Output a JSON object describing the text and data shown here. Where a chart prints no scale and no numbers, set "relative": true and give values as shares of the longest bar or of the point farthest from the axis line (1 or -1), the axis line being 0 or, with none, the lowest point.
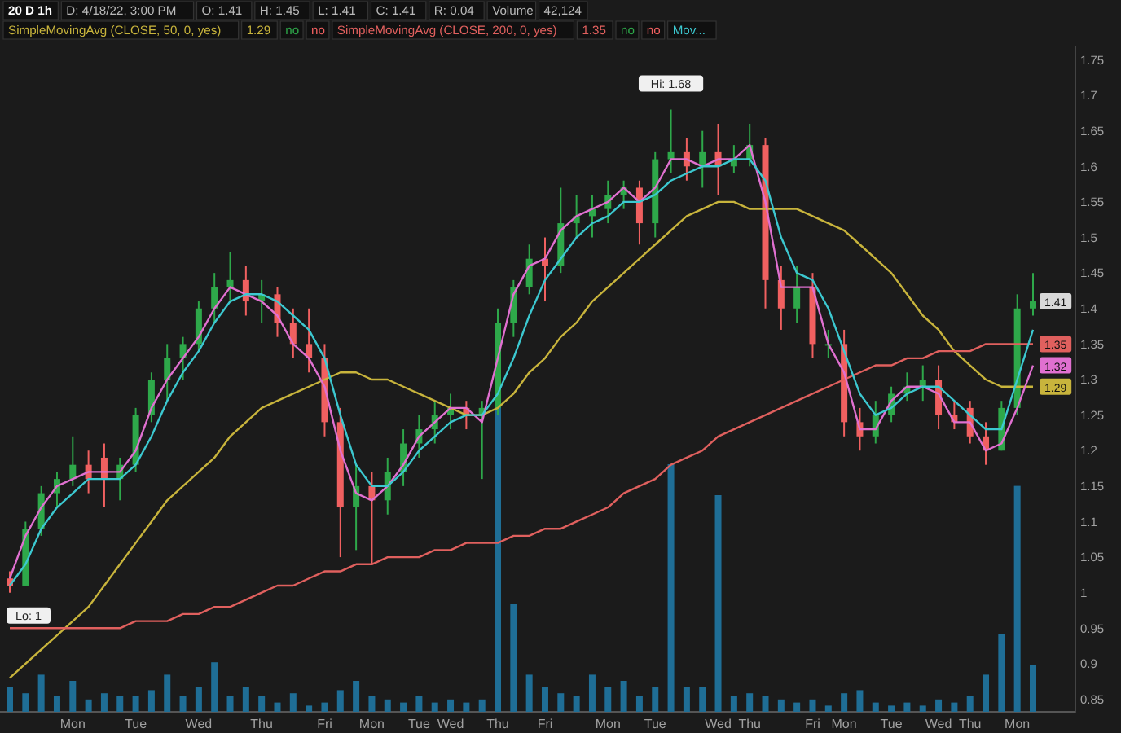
{
  "chart_data": [
    {
      "type": "candlestick",
      "title": "20 D 1h",
      "annotations": [
        "1.41",
        "D: 4/18/22, 3:00 PM",
        "O: 1.41",
        "H: 1.45",
        "L: 1.41",
        "C: 1.41",
        "R: 0.04",
        "Volume",
        "42,124",
        "1.29",
        "no",
        "no",
        "1.35",
        "no",
        "no",
        {
          "text": "Hi: 1.68",
          "y": 1.68
        },
        {
          "text": "Lo: 1",
          "y": 1.0
        }
      ],
      "categories": [
        null,
        null,
        null,
        null,
        "Mon",
        null,
        null,
        null,
        "Tue",
        null,
        null,
        null,
        "Wed",
        null,
        null,
        null,
        "Thu",
        null,
        null,
        null,
        "Fri",
        null,
        null,
        "Mon",
        null,
        null,
        "Tue",
        null,
        "Wed",
        null,
        null,
        "Thu",
        null,
        null,
        "Fri",
        null,
        null,
        null,
        "Mon",
        null,
        null,
        "Tue",
        null,
        null,
        null,
        "Wed",
        null,
        "Thu",
        null,
        null,
        null,
        "Fri",
        null,
        "Mon",
        null,
        null,
        "Tue",
        null,
        null,
        "Wed",
        null,
        "Thu",
        null,
        null,
        "Mon",
        null
      ],
      "ohlc": [
        [
          1.02,
          1.03,
          1.0,
          1.01
        ],
        [
          1.01,
          1.1,
          1.01,
          1.09
        ],
        [
          1.09,
          1.15,
          1.08,
          1.14
        ],
        [
          1.14,
          1.17,
          1.12,
          1.16
        ],
        [
          1.16,
          1.22,
          1.15,
          1.18
        ],
        [
          1.18,
          1.2,
          1.14,
          1.16
        ],
        [
          1.19,
          1.21,
          1.12,
          1.16
        ],
        [
          1.16,
          1.19,
          1.13,
          1.18
        ],
        [
          1.18,
          1.26,
          1.17,
          1.25
        ],
        [
          1.25,
          1.31,
          1.24,
          1.3
        ],
        [
          1.3,
          1.35,
          1.27,
          1.33
        ],
        [
          1.33,
          1.36,
          1.3,
          1.35
        ],
        [
          1.35,
          1.41,
          1.34,
          1.4
        ],
        [
          1.4,
          1.45,
          1.38,
          1.43
        ],
        [
          1.43,
          1.48,
          1.41,
          1.44
        ],
        [
          1.44,
          1.46,
          1.39,
          1.41
        ],
        [
          1.41,
          1.44,
          1.38,
          1.42
        ],
        [
          1.42,
          1.43,
          1.36,
          1.38
        ],
        [
          1.38,
          1.4,
          1.33,
          1.35
        ],
        [
          1.35,
          1.4,
          1.31,
          1.33
        ],
        [
          1.33,
          1.35,
          1.22,
          1.24
        ],
        [
          1.24,
          1.26,
          1.05,
          1.12
        ],
        [
          1.12,
          1.18,
          1.06,
          1.15
        ],
        [
          1.15,
          1.17,
          1.04,
          1.13
        ],
        [
          1.13,
          1.19,
          1.11,
          1.17
        ],
        [
          1.17,
          1.23,
          1.15,
          1.21
        ],
        [
          1.21,
          1.25,
          1.19,
          1.23
        ],
        [
          1.23,
          1.27,
          1.21,
          1.25
        ],
        [
          1.25,
          1.28,
          1.23,
          1.26
        ],
        [
          1.26,
          1.27,
          1.23,
          1.25
        ],
        [
          1.25,
          1.27,
          1.16,
          1.26
        ],
        [
          1.26,
          1.4,
          1.25,
          1.38
        ],
        [
          1.38,
          1.44,
          1.36,
          1.43
        ],
        [
          1.43,
          1.49,
          1.42,
          1.47
        ],
        [
          1.47,
          1.5,
          1.41,
          1.46
        ],
        [
          1.46,
          1.57,
          1.45,
          1.52
        ],
        [
          1.52,
          1.56,
          1.5,
          1.53
        ],
        [
          1.53,
          1.56,
          1.5,
          1.54
        ],
        [
          1.54,
          1.58,
          1.52,
          1.56
        ],
        [
          1.56,
          1.58,
          1.54,
          1.57
        ],
        [
          1.57,
          1.58,
          1.49,
          1.52
        ],
        [
          1.52,
          1.62,
          1.5,
          1.61
        ],
        [
          1.61,
          1.68,
          1.59,
          1.62
        ],
        [
          1.62,
          1.64,
          1.58,
          1.6
        ],
        [
          1.6,
          1.65,
          1.57,
          1.62
        ],
        [
          1.62,
          1.66,
          1.56,
          1.6
        ],
        [
          1.6,
          1.63,
          1.59,
          1.61
        ],
        [
          1.61,
          1.66,
          1.6,
          1.63
        ],
        [
          1.63,
          1.64,
          1.4,
          1.44
        ],
        [
          1.44,
          1.46,
          1.37,
          1.4
        ],
        [
          1.4,
          1.46,
          1.38,
          1.43
        ],
        [
          1.43,
          1.45,
          1.33,
          1.35
        ],
        [
          1.35,
          1.37,
          1.33,
          1.35
        ],
        [
          1.35,
          1.37,
          1.22,
          1.24
        ],
        [
          1.24,
          1.26,
          1.2,
          1.22
        ],
        [
          1.22,
          1.27,
          1.21,
          1.25
        ],
        [
          1.25,
          1.29,
          1.24,
          1.28
        ],
        [
          1.28,
          1.31,
          1.27,
          1.29
        ],
        [
          1.29,
          1.32,
          1.27,
          1.3
        ],
        [
          1.3,
          1.32,
          1.23,
          1.25
        ],
        [
          1.25,
          1.27,
          1.23,
          1.24
        ],
        [
          1.26,
          1.27,
          1.21,
          1.22
        ],
        [
          1.22,
          1.24,
          1.18,
          1.2
        ],
        [
          1.2,
          1.27,
          1.2,
          1.26
        ],
        [
          1.26,
          1.42,
          1.25,
          1.4
        ],
        [
          1.4,
          1.45,
          1.39,
          1.41
        ]
      ],
      "series": [
        {
          "type": "line",
          "name": "SimpleMovingAvg (CLOSE, 50, 0, yes)",
          "color": "#c8b43c",
          "value_labels": [
            null,
            null,
            null,
            null,
            null,
            null,
            null,
            null,
            null,
            null,
            null,
            null,
            null,
            null,
            null,
            null,
            null,
            null,
            null,
            null,
            null,
            null,
            null,
            null,
            null,
            null,
            null,
            null,
            null,
            null,
            null,
            null,
            null,
            null,
            null,
            null,
            null,
            null,
            null,
            null,
            null,
            null,
            null,
            null,
            null,
            null,
            null,
            null,
            null,
            null,
            null,
            null,
            null,
            null,
            null,
            null,
            null,
            null,
            null,
            null,
            null,
            null,
            null,
            null,
            null,
            "1.29"
          ],
          "values": [
            0.88,
            0.9,
            0.92,
            0.94,
            0.96,
            0.98,
            1.01,
            1.04,
            1.07,
            1.1,
            1.13,
            1.15,
            1.17,
            1.19,
            1.22,
            1.24,
            1.26,
            1.27,
            1.28,
            1.29,
            1.3,
            1.31,
            1.31,
            1.3,
            1.3,
            1.29,
            1.28,
            1.27,
            1.26,
            1.25,
            1.25,
            1.26,
            1.28,
            1.31,
            1.33,
            1.36,
            1.38,
            1.41,
            1.43,
            1.45,
            1.47,
            1.49,
            1.51,
            1.53,
            1.54,
            1.55,
            1.55,
            1.54,
            1.54,
            1.54,
            1.54,
            1.53,
            1.52,
            1.51,
            1.49,
            1.47,
            1.45,
            1.42,
            1.39,
            1.37,
            1.34,
            1.32,
            1.3,
            1.29,
            1.29,
            1.29
          ]
        },
        {
          "type": "line",
          "name": "SimpleMovingAvg (CLOSE, 200, 0, yes)",
          "color": "#e0605e",
          "value_labels": [
            null,
            null,
            null,
            null,
            null,
            null,
            null,
            null,
            null,
            null,
            null,
            null,
            null,
            null,
            null,
            null,
            null,
            null,
            null,
            null,
            null,
            null,
            null,
            null,
            null,
            null,
            null,
            null,
            null,
            null,
            null,
            null,
            null,
            null,
            null,
            null,
            null,
            null,
            null,
            null,
            null,
            null,
            null,
            null,
            null,
            null,
            null,
            null,
            null,
            null,
            null,
            null,
            null,
            null,
            null,
            null,
            null,
            null,
            null,
            null,
            null,
            null,
            null,
            null,
            null,
            "1.35"
          ],
          "values": [
            0.95,
            0.95,
            0.95,
            0.95,
            0.95,
            0.95,
            0.95,
            0.95,
            0.96,
            0.96,
            0.96,
            0.97,
            0.97,
            0.98,
            0.98,
            0.99,
            1.0,
            1.01,
            1.01,
            1.02,
            1.03,
            1.03,
            1.04,
            1.04,
            1.05,
            1.05,
            1.05,
            1.06,
            1.06,
            1.07,
            1.07,
            1.07,
            1.08,
            1.08,
            1.09,
            1.09,
            1.1,
            1.11,
            1.12,
            1.14,
            1.15,
            1.16,
            1.18,
            1.19,
            1.2,
            1.22,
            1.23,
            1.24,
            1.25,
            1.26,
            1.27,
            1.28,
            1.29,
            1.3,
            1.31,
            1.32,
            1.32,
            1.33,
            1.33,
            1.34,
            1.34,
            1.34,
            1.35,
            1.35,
            1.35,
            1.35
          ]
        },
        {
          "type": "line",
          "color": "#e070d0",
          "value_labels": [
            null,
            null,
            null,
            null,
            null,
            null,
            null,
            null,
            null,
            null,
            null,
            null,
            null,
            null,
            null,
            null,
            null,
            null,
            null,
            null,
            null,
            null,
            null,
            null,
            null,
            null,
            null,
            null,
            null,
            null,
            null,
            null,
            null,
            null,
            null,
            null,
            null,
            null,
            null,
            null,
            null,
            null,
            null,
            null,
            null,
            null,
            null,
            null,
            null,
            null,
            null,
            null,
            null,
            null,
            null,
            null,
            null,
            null,
            null,
            null,
            null,
            null,
            null,
            null,
            null,
            "1.32"
          ],
          "values": [
            1.02,
            1.08,
            1.12,
            1.15,
            1.16,
            1.17,
            1.17,
            1.17,
            1.2,
            1.26,
            1.3,
            1.33,
            1.36,
            1.4,
            1.43,
            1.42,
            1.41,
            1.39,
            1.35,
            1.33,
            1.29,
            1.2,
            1.14,
            1.13,
            1.15,
            1.18,
            1.22,
            1.24,
            1.26,
            1.26,
            1.24,
            1.33,
            1.42,
            1.46,
            1.47,
            1.51,
            1.53,
            1.54,
            1.55,
            1.57,
            1.55,
            1.57,
            1.61,
            1.61,
            1.6,
            1.61,
            1.61,
            1.63,
            1.55,
            1.43,
            1.43,
            1.43,
            1.35,
            1.31,
            1.23,
            1.23,
            1.27,
            1.29,
            1.29,
            1.28,
            1.24,
            1.24,
            1.2,
            1.21,
            1.26,
            1.32
          ]
        },
        {
          "type": "line",
          "name": "Mov...",
          "color": "#3cc8d0",
          "values": [
            1.01,
            1.04,
            1.09,
            1.12,
            1.14,
            1.16,
            1.16,
            1.16,
            1.18,
            1.22,
            1.27,
            1.31,
            1.34,
            1.38,
            1.41,
            1.42,
            1.42,
            1.41,
            1.39,
            1.37,
            1.33,
            1.25,
            1.18,
            1.15,
            1.15,
            1.17,
            1.2,
            1.22,
            1.24,
            1.25,
            1.25,
            1.28,
            1.33,
            1.39,
            1.44,
            1.47,
            1.5,
            1.52,
            1.53,
            1.55,
            1.55,
            1.56,
            1.58,
            1.59,
            1.6,
            1.6,
            1.61,
            1.61,
            1.58,
            1.5,
            1.45,
            1.44,
            1.4,
            1.34,
            1.28,
            1.25,
            1.26,
            1.28,
            1.29,
            1.29,
            1.27,
            1.25,
            1.23,
            1.23,
            1.3,
            1.37
          ]
        }
      ],
      "ylim": [
        0.83,
        1.77
      ],
      "yticks": [
        0.85,
        0.9,
        0.95,
        1,
        1.05,
        1.1,
        1.15,
        1.2,
        1.25,
        1.3,
        1.35,
        1.4,
        1.45,
        1.5,
        1.55,
        1.6,
        1.65,
        1.7,
        1.75
      ],
      "legend": "top"
    },
    {
      "type": "bar",
      "relative": true,
      "color": "#1f6e96",
      "categories": [
        null,
        null,
        null,
        null,
        null,
        null,
        null,
        null,
        null,
        null,
        null,
        null,
        null,
        null,
        null,
        null,
        null,
        null,
        null,
        null,
        null,
        null,
        null,
        null,
        null,
        null,
        null,
        null,
        null,
        null,
        null,
        null,
        null,
        null,
        null,
        null,
        null,
        null,
        null,
        null,
        null,
        null,
        null,
        null,
        null,
        null,
        null,
        null,
        null,
        null,
        null,
        null,
        null,
        null,
        null,
        null,
        null,
        null,
        null,
        null,
        null,
        null,
        null,
        null,
        null,
        null
      ],
      "values": [
        0.08,
        0.06,
        0.12,
        0.05,
        0.1,
        0.04,
        0.06,
        0.05,
        0.05,
        0.07,
        0.12,
        0.05,
        0.08,
        0.16,
        0.05,
        0.08,
        0.05,
        0.03,
        0.06,
        0.02,
        0.03,
        0.07,
        0.1,
        0.05,
        0.04,
        0.03,
        0.05,
        0.03,
        0.04,
        0.03,
        0.04,
        1.0,
        0.35,
        0.12,
        0.08,
        0.06,
        0.05,
        0.12,
        0.08,
        0.1,
        0.05,
        0.08,
        0.8,
        0.08,
        0.08,
        0.7,
        0.05,
        0.06,
        0.05,
        0.04,
        0.03,
        0.04,
        0.02,
        0.06,
        0.07,
        0.03,
        0.02,
        0.03,
        0.02,
        0.04,
        0.03,
        0.05,
        0.12,
        0.25,
        0.73,
        0.15
      ]
    }
  ]
}
